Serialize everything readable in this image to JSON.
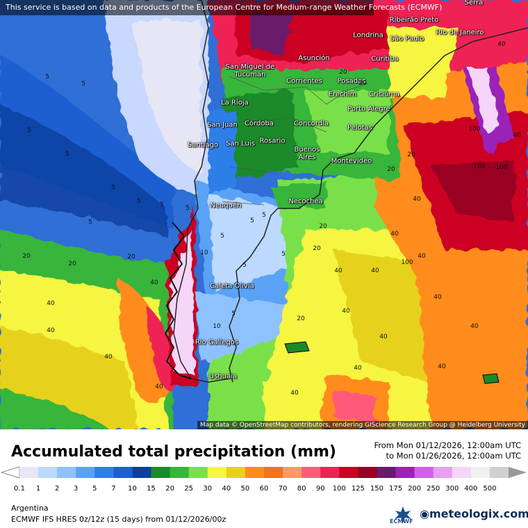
{
  "banner": "This service is based on data and products of the European Centre for Medium-range Weather Forecasts (ECMWF)",
  "attribution": "Map data © OpenStreetMap contributors, rendering GIScience Research Group @ Heidelberg University",
  "title": "Accumulated total precipitation (mm)",
  "range": {
    "from": "From Mon 01/12/2026, 12:00am UTC",
    "to": "to Mon 01/26/2026, 12:00am UTC"
  },
  "legend": {
    "ticks": [
      "0.1",
      "1",
      "2",
      "3",
      "5",
      "7",
      "10",
      "15",
      "20",
      "25",
      "30",
      "40",
      "50",
      "60",
      "70",
      "80",
      "90",
      "100",
      "125",
      "150",
      "175",
      "200",
      "250",
      "300",
      "400",
      "500"
    ],
    "colors": [
      "#e6e6f5",
      "#bcd9ff",
      "#8ec2ff",
      "#5aa2f5",
      "#2f7ee8",
      "#1d5fd0",
      "#0f3f9e",
      "#1a8a2a",
      "#38b53a",
      "#7ae04a",
      "#f5f542",
      "#e6d21e",
      "#ff8c1a",
      "#f0741a",
      "#ff9966",
      "#ff5a7a",
      "#ee2255",
      "#cc0022",
      "#990022",
      "#6a1a6a",
      "#9a22b8",
      "#d060e8",
      "#e6a0f0",
      "#f5d6f8",
      "#f0f0f0",
      "#d0d0d0"
    ]
  },
  "region": "Argentina",
  "model": "ECMWF IFS HRES 0z/12z (15 days) from  01/12/2026/00z",
  "brands": {
    "ecmwf": "ECMWF",
    "meteologix": "meteologix.com"
  },
  "cities": [
    {
      "name": "Ribeirão Preto"
    },
    {
      "name": "São Paulo"
    },
    {
      "name": "Rio de Janeiro"
    },
    {
      "name": "Londrina"
    },
    {
      "name": "Asunción"
    },
    {
      "name": "Curitiba"
    },
    {
      "name": "San Miguel de Tucumán"
    },
    {
      "name": "Corrientes"
    },
    {
      "name": "Posadas"
    },
    {
      "name": "Erechim"
    },
    {
      "name": "Criciúma"
    },
    {
      "name": "La Rioja"
    },
    {
      "name": "Porto Alegre"
    },
    {
      "name": "San Juan"
    },
    {
      "name": "Córdoba"
    },
    {
      "name": "Concordia"
    },
    {
      "name": "Pelotas"
    },
    {
      "name": "Santiago"
    },
    {
      "name": "San Luis"
    },
    {
      "name": "Rosario"
    },
    {
      "name": "Buenos Aires"
    },
    {
      "name": "Montevideo"
    },
    {
      "name": "Neuquén"
    },
    {
      "name": "Necochea"
    },
    {
      "name": "Caleta Olivia"
    },
    {
      "name": "Rio Gallegos"
    },
    {
      "name": "Ushuaia"
    },
    {
      "name": "Serra"
    }
  ],
  "contours": [
    "5",
    "5",
    "5",
    "5",
    "5",
    "5",
    "5",
    "5",
    "5",
    "5",
    "5",
    "5",
    "5",
    "5",
    "5",
    "10",
    "10",
    "20",
    "20",
    "20",
    "20",
    "20",
    "20",
    "20",
    "40",
    "40",
    "40",
    "40",
    "40",
    "40",
    "40",
    "40",
    "40",
    "40",
    "40",
    "40",
    "40",
    "40",
    "40",
    "40",
    "40",
    "100",
    "100",
    "100",
    "100",
    "20",
    "20",
    "20",
    "40",
    "40"
  ]
}
